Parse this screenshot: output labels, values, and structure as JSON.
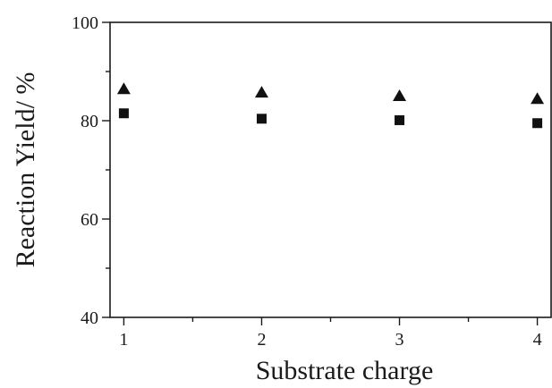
{
  "chart_data": {
    "type": "scatter",
    "xlabel": "Substrate charge",
    "ylabel": "Reaction Yield/ %",
    "xlim": [
      0.9,
      4.1
    ],
    "ylim": [
      40,
      100
    ],
    "x_ticks": [
      1,
      2,
      3,
      4
    ],
    "x_tick_labels": [
      "1",
      "2",
      "3",
      "4"
    ],
    "y_ticks": [
      40,
      60,
      80,
      100
    ],
    "y_tick_labels": [
      "40",
      "60",
      "80",
      "100"
    ],
    "y_minor_ticks": [
      50,
      70,
      90
    ],
    "grid": false,
    "legend": "none",
    "series": [
      {
        "marker": "triangle",
        "color": "#111111",
        "x": [
          1,
          2,
          3,
          4
        ],
        "y": [
          86.5,
          85.8,
          85.1,
          84.5
        ]
      },
      {
        "marker": "square",
        "color": "#111111",
        "x": [
          1,
          2,
          3,
          4
        ],
        "y": [
          81.5,
          80.4,
          80.1,
          79.5
        ]
      }
    ]
  }
}
